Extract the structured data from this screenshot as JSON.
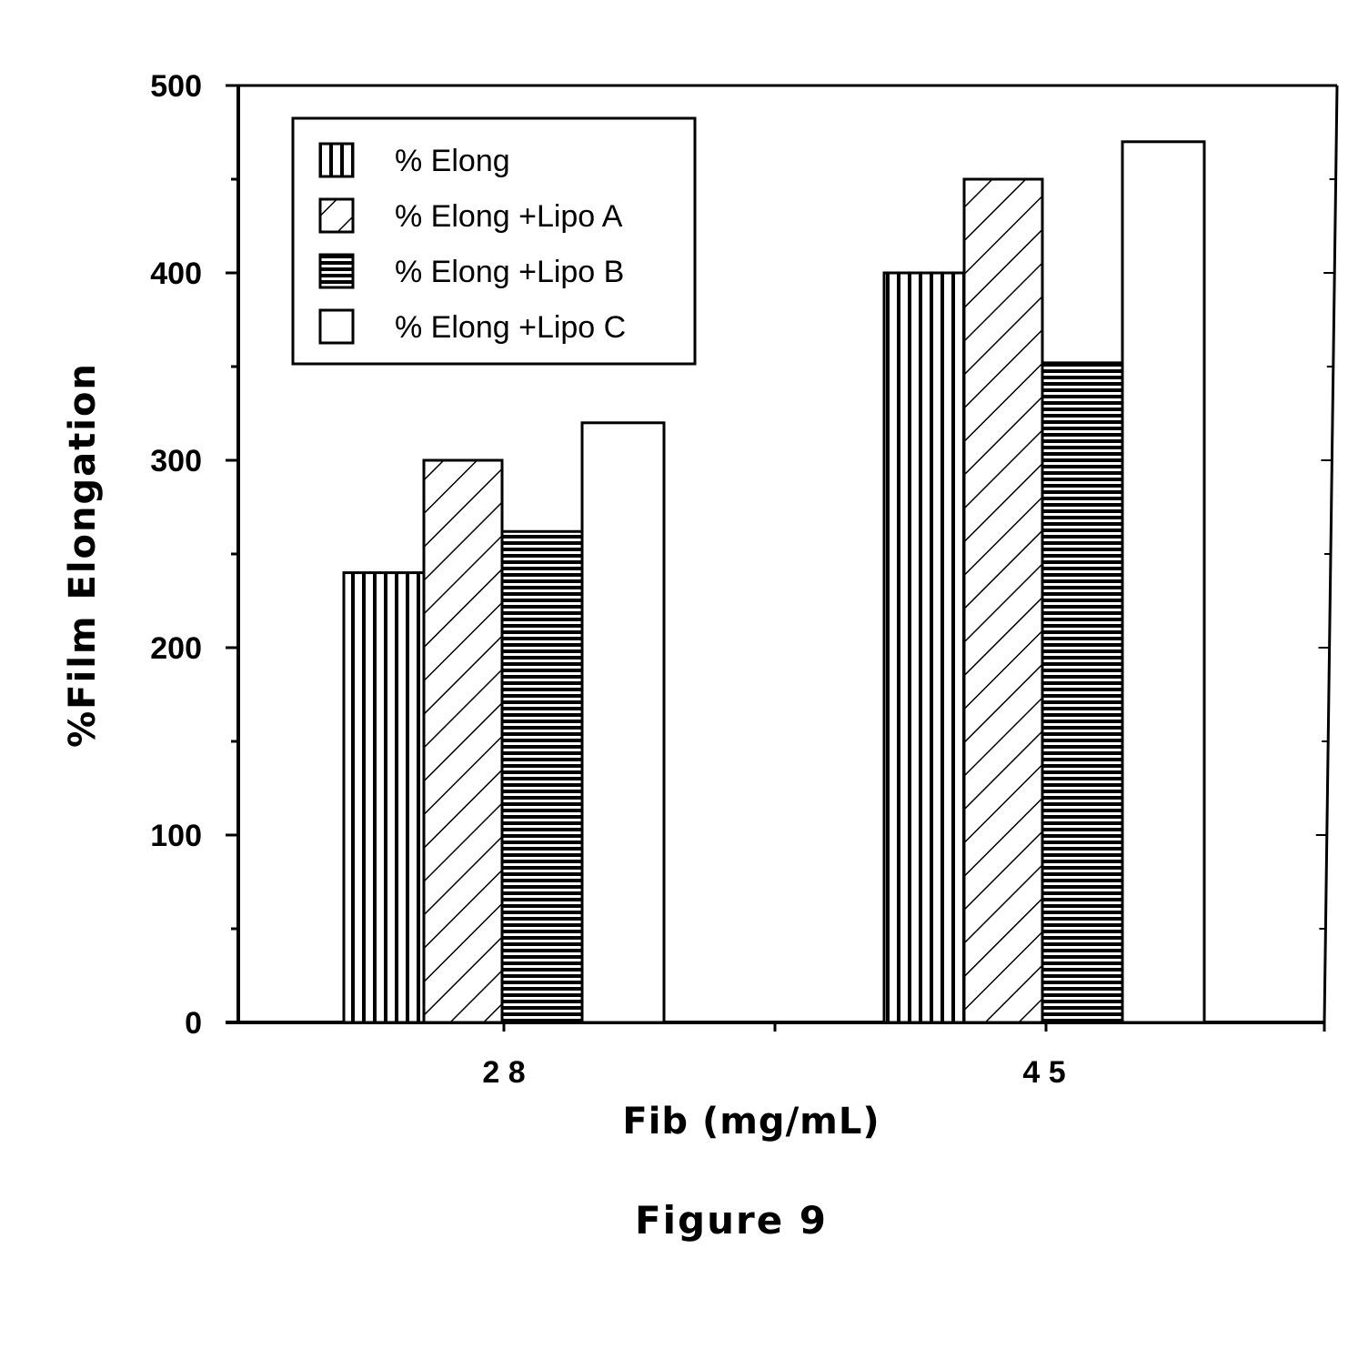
{
  "chart_data": {
    "type": "bar",
    "categories": [
      "2 8",
      "4 5"
    ],
    "series": [
      {
        "name": "% Elong",
        "values": [
          240,
          400
        ],
        "pattern": "vertical"
      },
      {
        "name": "% Elong +Lipo A",
        "values": [
          300,
          450
        ],
        "pattern": "diagonal"
      },
      {
        "name": "% Elong +Lipo B",
        "values": [
          262,
          352
        ],
        "pattern": "horizontal"
      },
      {
        "name": "% Elong +Lipo C",
        "values": [
          320,
          470
        ],
        "pattern": "none"
      }
    ],
    "title": "",
    "xlabel": "Fib (mg/mL)",
    "ylabel": "%Film Elongation",
    "ylim": [
      0,
      500
    ],
    "yticks": [
      0,
      100,
      200,
      300,
      400,
      500
    ],
    "legend_position": "top-left",
    "grid": false
  },
  "caption": "Figure 9"
}
